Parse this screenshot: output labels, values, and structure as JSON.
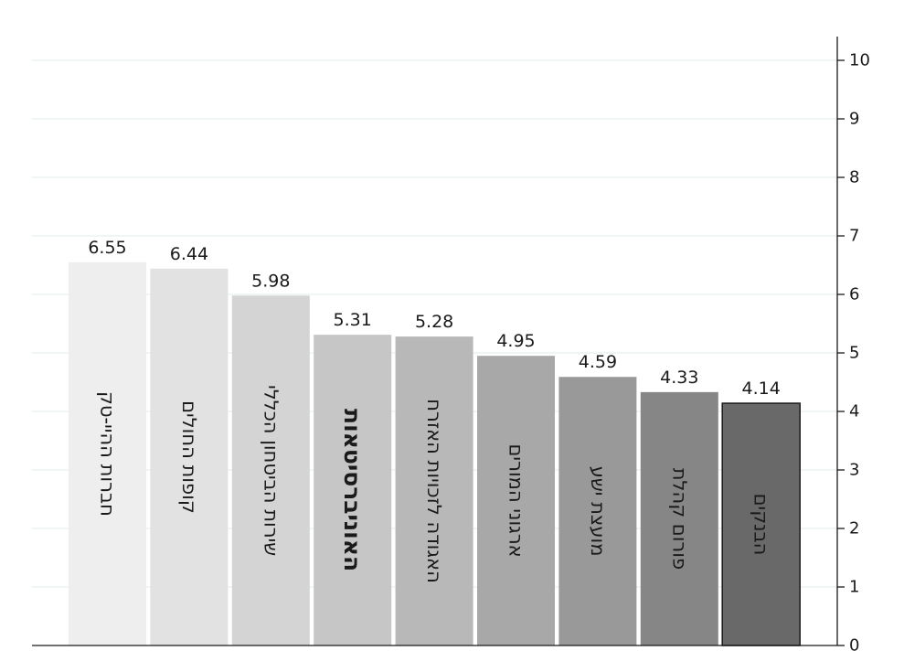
{
  "chart_data": {
    "type": "bar",
    "orientation": "vertical",
    "categories": [
      "חברות ההיי-טק",
      "קופות החולים",
      "שירות הביטחון הכללי",
      "האוניברסיטאות",
      "האגודה לזכויות האזרח",
      "ארגוני המורים",
      "מועצת ישע",
      "פורום קהלת",
      "הבנקים"
    ],
    "values": [
      6.55,
      6.44,
      5.98,
      5.31,
      5.28,
      4.95,
      4.59,
      4.33,
      4.14
    ],
    "value_labels": [
      "6.55",
      "6.44",
      "5.98",
      "5.31",
      "5.28",
      "4.95",
      "4.59",
      "4.33",
      "4.14"
    ],
    "bar_colors": [
      "#eeeeee",
      "#e2e2e2",
      "#d4d4d4",
      "#c6c6c6",
      "#b8b8b8",
      "#a8a8a8",
      "#999999",
      "#868686",
      "#696969"
    ],
    "emphasized_category": "האוניברסיטאות",
    "y_ticks": [
      0,
      1,
      2,
      3,
      4,
      5,
      6,
      7,
      8,
      9,
      10
    ],
    "y_tick_labels": [
      "0",
      "1",
      "2",
      "3",
      "4",
      "5",
      "6",
      "7",
      "8",
      "9",
      "10"
    ],
    "ylim": [
      0,
      10
    ],
    "y_axis_side": "right",
    "grid": true,
    "legend": "none",
    "title": "",
    "xlabel": "",
    "ylabel": ""
  }
}
